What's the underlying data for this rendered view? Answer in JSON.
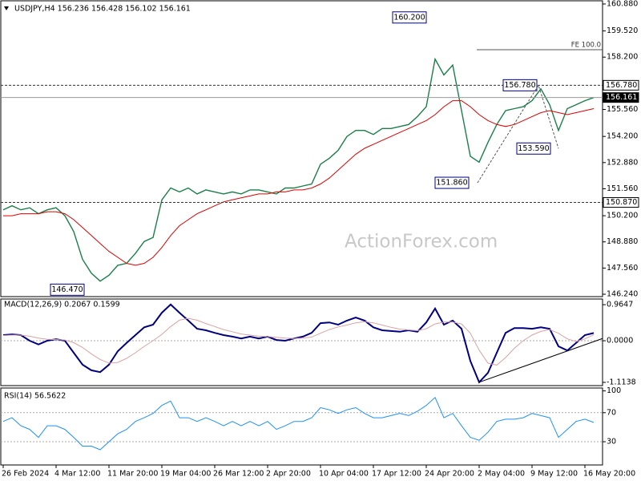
{
  "chart_data": [
    {
      "type": "line",
      "title": "USDJPY,H4  156.236 156.428 156.102 156.161",
      "watermark": "ActionForex.com",
      "ylim": [
        146.12,
        161.04
      ],
      "yticks": [
        {
          "value": 160.88,
          "label": "160.880"
        },
        {
          "value": 159.52,
          "label": "159.520"
        },
        {
          "value": 158.2,
          "label": "158.200"
        },
        {
          "value": 155.56,
          "label": "155.560"
        },
        {
          "value": 154.2,
          "label": "154.200"
        },
        {
          "value": 152.88,
          "label": "152.880"
        },
        {
          "value": 151.56,
          "label": "151.560"
        },
        {
          "value": 150.2,
          "label": "150.200"
        },
        {
          "value": 148.88,
          "label": "148.880"
        },
        {
          "value": 147.56,
          "label": "147.560"
        },
        {
          "value": 146.24,
          "label": "146.240"
        }
      ],
      "series": [
        {
          "color": "#1b7f4a",
          "values": [
            150.5,
            150.7,
            150.5,
            150.6,
            150.3,
            150.5,
            150.6,
            150.2,
            149.4,
            148.0,
            147.3,
            146.9,
            147.2,
            147.7,
            147.8,
            148.3,
            148.9,
            149.1,
            151.0,
            151.6,
            151.4,
            151.6,
            151.3,
            151.5,
            151.4,
            151.3,
            151.4,
            151.3,
            151.5,
            151.5,
            151.4,
            151.3,
            151.6,
            151.6,
            151.7,
            151.8,
            152.8,
            153.1,
            153.5,
            154.2,
            154.5,
            154.5,
            154.3,
            154.6,
            154.6,
            154.7,
            154.8,
            155.2,
            155.7,
            158.1,
            157.3,
            157.8,
            155.5,
            153.2,
            152.9,
            153.9,
            154.8,
            155.5,
            155.6,
            155.7,
            156.0,
            156.6,
            155.8,
            154.5,
            155.6,
            155.8,
            156.0,
            156.161
          ]
        },
        {
          "color": "#e00000",
          "values": [
            150.2,
            150.2,
            150.3,
            150.3,
            150.3,
            150.4,
            150.4,
            150.3,
            150.0,
            149.6,
            149.2,
            148.8,
            148.4,
            148.1,
            147.8,
            147.7,
            147.8,
            148.1,
            148.6,
            149.2,
            149.7,
            150.0,
            150.3,
            150.5,
            150.7,
            150.9,
            151.0,
            151.1,
            151.2,
            151.3,
            151.3,
            151.4,
            151.4,
            151.5,
            151.5,
            151.6,
            151.8,
            152.1,
            152.5,
            152.9,
            153.3,
            153.6,
            153.8,
            154.0,
            154.2,
            154.4,
            154.6,
            154.8,
            155.0,
            155.3,
            155.7,
            156.0,
            156.0,
            155.7,
            155.3,
            155.0,
            154.8,
            154.7,
            154.8,
            155.0,
            155.2,
            155.4,
            155.5,
            155.4,
            155.3,
            155.4,
            155.5,
            155.6
          ]
        }
      ],
      "annotations": [
        {
          "label": "160.200",
          "value": 160.2
        },
        {
          "label": "156.780",
          "value": 156.78
        },
        {
          "label": "153.590",
          "value": 153.59
        },
        {
          "label": "151.860",
          "value": 151.86
        },
        {
          "label": "146.470",
          "value": 146.47
        }
      ],
      "levels": [
        {
          "label": "156.780",
          "value": 156.78,
          "style": "dashed"
        },
        {
          "label": "150.870",
          "value": 150.87,
          "style": "dashed"
        },
        {
          "label": "156.161",
          "value": 156.161,
          "style": "current"
        },
        {
          "label": "FE 100.0",
          "value": 158.575,
          "style": "fe"
        }
      ]
    },
    {
      "type": "line",
      "title": "MACD(12,26,9) 0.2067 0.1599",
      "ylim": [
        -1.2,
        1.116
      ],
      "yticks": [
        {
          "value": 0.9647,
          "label": "0.9647"
        },
        {
          "value": 0,
          "label": "0.0000"
        },
        {
          "value": -1.1138,
          "label": "-1.1138"
        }
      ],
      "levels": [
        0
      ],
      "series": [
        {
          "color": "#000080",
          "values": [
            0.15,
            0.17,
            0.15,
            0,
            -0.1,
            0,
            0.04,
            0,
            -0.32,
            -0.64,
            -0.79,
            -0.84,
            -0.64,
            -0.28,
            -0.06,
            0.15,
            0.36,
            0.43,
            0.75,
            0.97,
            0.75,
            0.54,
            0.32,
            0.28,
            0.21,
            0.15,
            0.11,
            0.06,
            0.11,
            0.06,
            0.11,
            0.02,
            0,
            0.06,
            0.11,
            0.21,
            0.47,
            0.49,
            0.43,
            0.54,
            0.62,
            0.54,
            0.36,
            0.28,
            0.26,
            0.24,
            0.28,
            0.24,
            0.49,
            0.86,
            0.43,
            0.54,
            0.32,
            -0.54,
            -1.11,
            -0.86,
            -0.32,
            0.21,
            0.34,
            0.34,
            0.32,
            0.36,
            0.32,
            -0.15,
            -0.26,
            -0.06,
            0.15,
            0.2067
          ]
        },
        {
          "color": "#d9a3a3",
          "values": [
            0.14,
            0.15,
            0.15,
            0.12,
            0.07,
            0.04,
            0.03,
            0.02,
            -0.05,
            -0.18,
            -0.35,
            -0.5,
            -0.6,
            -0.58,
            -0.47,
            -0.32,
            -0.15,
            0,
            0.17,
            0.38,
            0.55,
            0.6,
            0.55,
            0.46,
            0.38,
            0.3,
            0.24,
            0.18,
            0.15,
            0.12,
            0.11,
            0.09,
            0.07,
            0.06,
            0.07,
            0.1,
            0.2,
            0.3,
            0.37,
            0.42,
            0.48,
            0.51,
            0.48,
            0.42,
            0.36,
            0.31,
            0.29,
            0.27,
            0.32,
            0.45,
            0.5,
            0.5,
            0.45,
            0.2,
            -0.25,
            -0.6,
            -0.65,
            -0.45,
            -0.2,
            0,
            0.15,
            0.25,
            0.3,
            0.2,
            0.05,
            -0.02,
            0.05,
            0.1599
          ]
        }
      ],
      "trendline": {
        "values": [
          -1.11,
          0.06
        ]
      }
    },
    {
      "type": "line",
      "title": "RSI(14) 56.5622",
      "ylim": [
        -2,
        104
      ],
      "yticks": [
        100,
        70,
        30
      ],
      "levels": [
        70,
        30
      ],
      "series": [
        {
          "color": "#1e90ff",
          "values": [
            58,
            63,
            52,
            47,
            36,
            52,
            52,
            47,
            36,
            24,
            24,
            19,
            30,
            41,
            47,
            58,
            63,
            69,
            80,
            86,
            63,
            63,
            58,
            63,
            58,
            52,
            58,
            52,
            58,
            52,
            58,
            47,
            52,
            58,
            58,
            63,
            77,
            74,
            69,
            74,
            77,
            69,
            63,
            63,
            66,
            69,
            66,
            72,
            80,
            91,
            63,
            69,
            52,
            36,
            32,
            43,
            58,
            61,
            61,
            63,
            69,
            66,
            63,
            36,
            47,
            58,
            61,
            56.5622
          ]
        }
      ],
      "categories": [
        "26 Feb 2024",
        null,
        null,
        null,
        null,
        null,
        "4 Mar 12:00",
        null,
        null,
        null,
        null,
        null,
        "11 Mar 20:00",
        null,
        null,
        null,
        null,
        null,
        "19 Mar 04:00",
        null,
        null,
        null,
        null,
        null,
        "26 Mar 12:00",
        null,
        null,
        null,
        null,
        null,
        "2 Apr 20:00",
        null,
        null,
        null,
        null,
        null,
        "10 Apr 04:00",
        null,
        null,
        null,
        null,
        null,
        "17 Apr 12:00",
        null,
        null,
        null,
        null,
        null,
        "24 Apr 20:00",
        null,
        null,
        null,
        null,
        null,
        "2 May 04:00",
        null,
        null,
        null,
        null,
        null,
        "9 May 12:00",
        null,
        null,
        null,
        null,
        null,
        "16 May 20:00",
        null
      ]
    }
  ]
}
